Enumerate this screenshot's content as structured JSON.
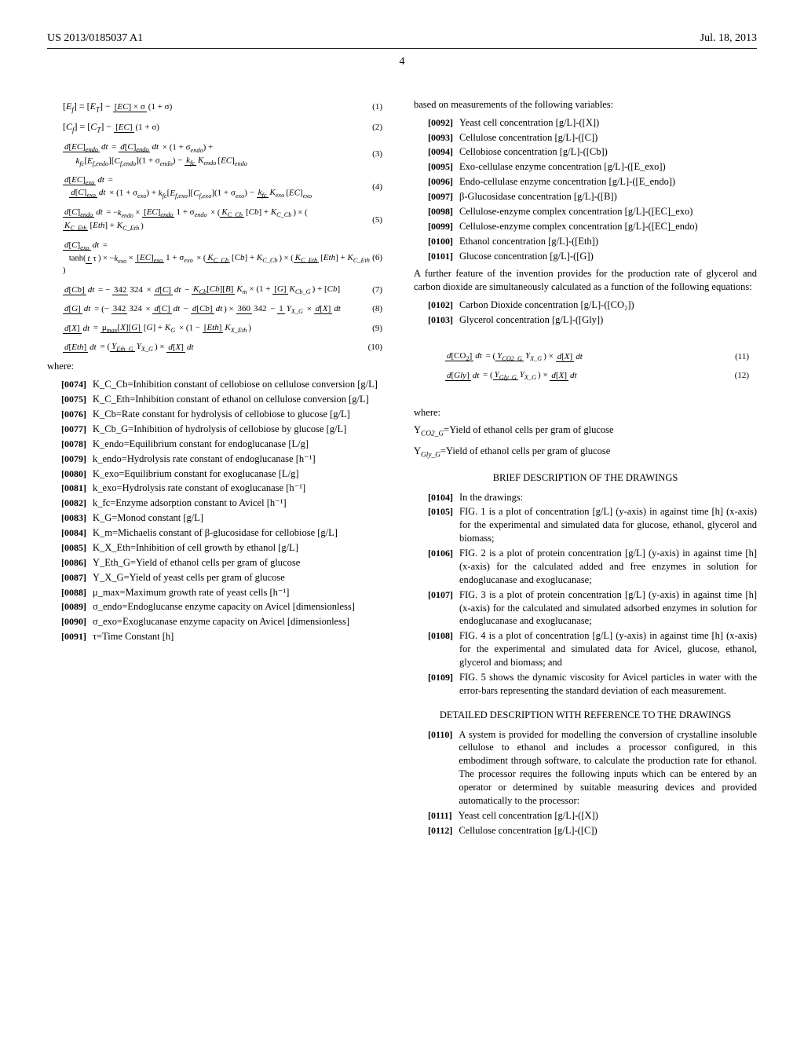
{
  "header": {
    "doc_id": "US 2013/0185037 A1",
    "date": "Jul. 18, 2013"
  },
  "page_number": "4",
  "equations": {
    "eq1": {
      "body": "[E_f] = [E_T] − ([EC] × σ) / (1 + σ)",
      "num": "(1)"
    },
    "eq2": {
      "body": "[C_f] = [C_T] − [EC] / (1 + σ)",
      "num": "(2)"
    },
    "eq3": {
      "body": "d[EC]_endo/dt = d[C]_endo/dt × (1 + σ_endo) + k_fc[E_f,endo][C_f,endo](1 + σ_endo) − (k_fc/K_endo)[EC]_endo",
      "num": "(3)"
    },
    "eq4": {
      "body": "d[EC]_exo/dt = d[C]_exo/dt × (1 + σ_exo) + k_fc[E_f,exo][C_f,exo](1 + σ_exo) − (k_fc/K_exo)[EC]_exo",
      "num": "(4)"
    },
    "eq5": {
      "body": "d[C]_endo/dt = −k_endo × [EC]_endo/(1+σ_endo) × (K_C_Cb/([Cb]+K_C_Cb)) × (K_C_Eth/([Eth]+K_C_Eth))",
      "num": "(5)"
    },
    "eq6": {
      "body": "d[C]_exo/dt = tanh(t/τ) × −k_exo × [EC]_exo/(1+σ_exo) × (K_C_Cb/([Cb]+K_C_Cb)) × (K_C_Eth/([Eth]+K_C_Eth))",
      "num": "(6)"
    },
    "eq7": {
      "body": "d[Cb]/dt = −(342/324) × d[C]/dt − K_Cb[Cb][B] / (K_m×(1+[G]/K_Cb_G)+[Cb])",
      "num": "(7)"
    },
    "eq8": {
      "body": "d[G]/dt = (−342/324 × d[C]/dt − d[Cb]/dt) × 360/342 − 1/Y_X_G × d[X]/dt",
      "num": "(8)"
    },
    "eq9": {
      "body": "d[X]/dt = μ_max[X][G]/([G]+K_G) × (1 − [Eth]/K_X_Eth)",
      "num": "(9)"
    },
    "eq10": {
      "body": "d[Eth]/dt = (Y_Eth_G/Y_X_G) × d[X]/dt",
      "num": "(10)"
    },
    "eq11": {
      "body": "d[CO₂]/dt = (Y_CO2_G/Y_X_G) × d[X]/dt",
      "num": "(11)"
    },
    "eq12": {
      "body": "d[Gly]/dt = (Y_Gly_G/Y_X_G) × d[X]/dt",
      "num": "(12)"
    }
  },
  "where_label": "where:",
  "left_defs": [
    {
      "n": "[0074]",
      "t": "K_C_Cb=Inhibition constant of cellobiose on cellulose conversion [g/L]"
    },
    {
      "n": "[0075]",
      "t": "K_C_Eth=Inhibition constant of ethanol on cellulose conversion [g/L]"
    },
    {
      "n": "[0076]",
      "t": "K_Cb=Rate constant for hydrolysis of cellobiose to glucose [g/L]"
    },
    {
      "n": "[0077]",
      "t": "K_Cb_G=Inhibition of hydrolysis of cellobiose by glucose [g/L]"
    },
    {
      "n": "[0078]",
      "t": "K_endo=Equilibrium constant for endoglucanase [L/g]"
    },
    {
      "n": "[0079]",
      "t": "k_endo=Hydrolysis rate constant of endoglucanase [h⁻¹]"
    },
    {
      "n": "[0080]",
      "t": "K_exo=Equilibrium constant for exoglucanase [L/g]"
    },
    {
      "n": "[0081]",
      "t": "k_exo=Hydrolysis rate constant of exoglucanase [h⁻¹]"
    },
    {
      "n": "[0082]",
      "t": "k_fc=Enzyme adsorption constant to Avicel [h⁻¹]"
    },
    {
      "n": "[0083]",
      "t": "K_G=Monod constant [g/L]"
    },
    {
      "n": "[0084]",
      "t": "K_m=Michaelis constant of β-glucosidase for cellobiose [g/L]"
    },
    {
      "n": "[0085]",
      "t": "K_X_Eth=Inhibition of cell growth by ethanol [g/L]"
    },
    {
      "n": "[0086]",
      "t": "Y_Eth_G=Yield of ethanol cells per gram of glucose"
    },
    {
      "n": "[0087]",
      "t": "Y_X_G=Yield of yeast cells per gram of glucose"
    },
    {
      "n": "[0088]",
      "t": "μ_max=Maximum growth rate of yeast cells [h⁻¹]"
    },
    {
      "n": "[0089]",
      "t": "σ_endo=Endoglucanse enzyme capacity on Avicel [dimensionless]"
    },
    {
      "n": "[0090]",
      "t": "σ_exo=Exoglucanase enzyme capacity on Avicel [dimensionless]"
    },
    {
      "n": "[0091]",
      "t": "τ=Time Constant [h]"
    }
  ],
  "right_intro": "based on measurements of the following variables:",
  "right_vars": [
    {
      "n": "[0092]",
      "t": "Yeast cell concentration [g/L]-([X])"
    },
    {
      "n": "[0093]",
      "t": "Cellulose concentration [g/L]-([C])"
    },
    {
      "n": "[0094]",
      "t": "Cellobiose concentration [g/L]-([Cb])"
    },
    {
      "n": "[0095]",
      "t": "Exo-cellulase enzyme concentration [g/L]-([E_exo])"
    },
    {
      "n": "[0096]",
      "t": "Endo-cellulase enzyme concentration [g/L]-([E_endo])"
    },
    {
      "n": "[0097]",
      "t": "β-Glucosidase concentration [g/L]-([B])"
    },
    {
      "n": "[0098]",
      "t": "Cellulose-enzyme complex concentration [g/L]-([EC]_exo)"
    },
    {
      "n": "[0099]",
      "t": "Cellulose-enzyme complex concentration [g/L]-([EC]_endo)"
    },
    {
      "n": "[0100]",
      "t": "Ethanol concentration [g/L]-([Eth])"
    },
    {
      "n": "[0101]",
      "t": "Glucose concentration [g/L]-([G])"
    }
  ],
  "right_further": "A further feature of the invention provides for the production rate of glycerol and carbon dioxide are simultaneously calculated as a function of the following equations:",
  "right_further_items": [
    {
      "n": "[0102]",
      "t": "Carbon Dioxide concentration [g/L]-([CO₂])"
    },
    {
      "n": "[0103]",
      "t": "Glycerol concentration [g/L]-([Gly])"
    }
  ],
  "right_where2": [
    "Y_CO2_G=Yield of ethanol cells per gram of glucose",
    "Y_Gly_G=Yield of ethanol cells per gram of glucose"
  ],
  "drawings_title": "BRIEF DESCRIPTION OF THE DRAWINGS",
  "drawings_items": [
    {
      "n": "[0104]",
      "t": "In the drawings:"
    },
    {
      "n": "[0105]",
      "t": "FIG. 1 is a plot of concentration [g/L] (y-axis) in against time [h] (x-axis) for the experimental and simulated data for glucose, ethanol, glycerol and biomass;"
    },
    {
      "n": "[0106]",
      "t": "FIG. 2 is a plot of protein concentration [g/L] (y-axis) in against time [h] (x-axis) for the calculated added and free enzymes in solution for endoglucanase and exoglucanase;"
    },
    {
      "n": "[0107]",
      "t": "FIG. 3 is a plot of protein concentration [g/L] (y-axis) in against time [h] (x-axis) for the calculated and simulated adsorbed enzymes in solution for endoglucanase and exoglucanase;"
    },
    {
      "n": "[0108]",
      "t": "FIG. 4 is a plot of concentration [g/L] (y-axis) in against time [h] (x-axis) for the experimental and simulated data for Avicel, glucose, ethanol, glycerol and biomass; and"
    },
    {
      "n": "[0109]",
      "t": "FIG. 5 shows the dynamic viscosity for Avicel particles in water with the error-bars representing the standard deviation of each measurement."
    }
  ],
  "detail_title": "DETAILED DESCRIPTION WITH REFERENCE TO THE DRAWINGS",
  "detail_items": [
    {
      "n": "[0110]",
      "t": "A system is provided for modelling the conversion of crystalline insoluble cellulose to ethanol and includes a processor configured, in this embodiment through software, to calculate the production rate for ethanol. The processor requires the following inputs which can be entered by an operator or determined by suitable measuring devices and provided automatically to the processor:"
    },
    {
      "n": "[0111]",
      "t": "Yeast cell concentration [g/L]-([X])"
    },
    {
      "n": "[0112]",
      "t": "Cellulose concentration [g/L]-([C])"
    }
  ]
}
